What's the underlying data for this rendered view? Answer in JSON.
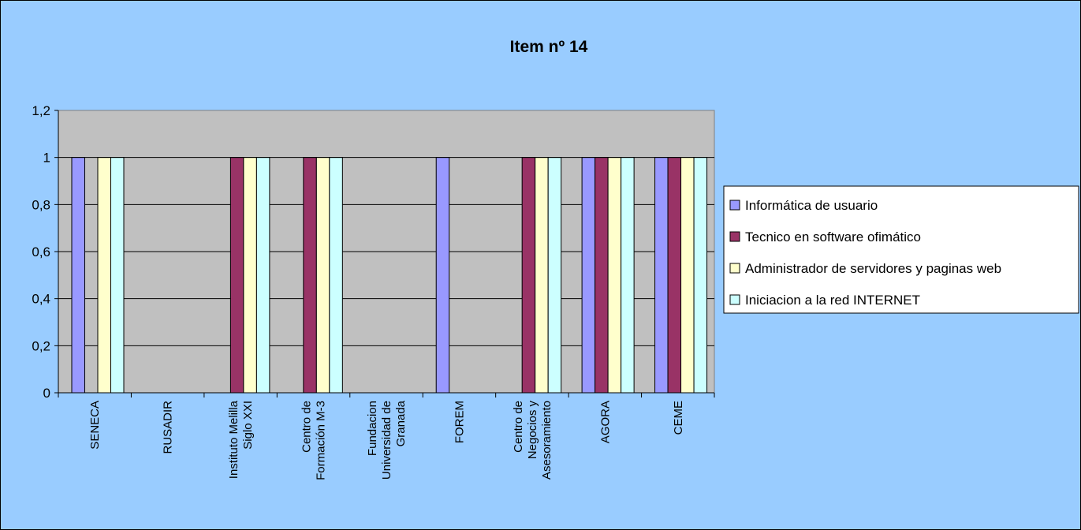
{
  "chart_data": {
    "type": "bar",
    "title": "Item nº 14",
    "xlabel": "",
    "ylabel": "",
    "ylim": [
      0,
      1.2
    ],
    "yticks": [
      "0",
      "0,2",
      "0,4",
      "0,6",
      "0,8",
      "1",
      "1,2"
    ],
    "grid": true,
    "legend_position": "right",
    "categories": [
      [
        "SENECA"
      ],
      [
        "RUSADIR"
      ],
      [
        "Instituto Melilla",
        "Siglo XXI"
      ],
      [
        "Centro de",
        "Formación M-3"
      ],
      [
        "Fundacion",
        "Universidad de",
        "Granada"
      ],
      [
        "FOREM"
      ],
      [
        "Centro de",
        "Negocios y",
        "Asesoramiento"
      ],
      [
        "AGORA"
      ],
      [
        "CEME"
      ]
    ],
    "series": [
      {
        "name": "Informática de usuario",
        "color": "#9999FF",
        "values": [
          1,
          0,
          0,
          0,
          0,
          1,
          0,
          1,
          1
        ]
      },
      {
        "name": "Tecnico en software ofimático",
        "color": "#993366",
        "values": [
          0,
          0,
          1,
          1,
          0,
          0,
          1,
          1,
          1
        ]
      },
      {
        "name": "Administrador de servidores y paginas web",
        "color": "#FFFFCC",
        "values": [
          1,
          0,
          1,
          1,
          0,
          0,
          1,
          1,
          1
        ]
      },
      {
        "name": "Iniciacion a la red INTERNET",
        "color": "#CCFFFF",
        "values": [
          1,
          0,
          1,
          1,
          0,
          0,
          1,
          1,
          1
        ]
      }
    ],
    "colors": {
      "chart_background": "#99CCFF",
      "plot_background": "#C0C0C0",
      "legend_background": "#FFFFFF"
    }
  }
}
